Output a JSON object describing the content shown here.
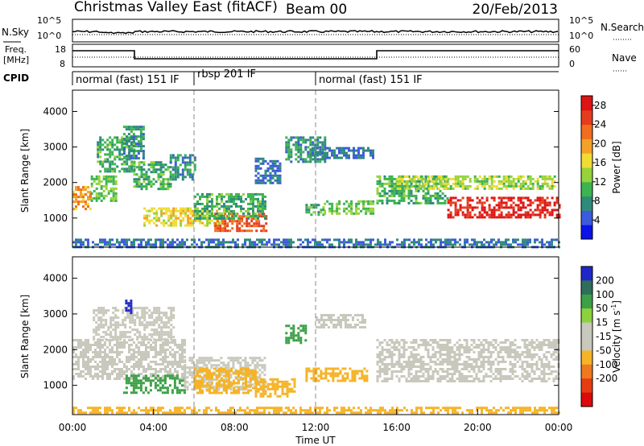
{
  "header": {
    "title": "Christmas Valley East (fitACF)",
    "beam": "Beam 00",
    "date": "20/Feb/2013"
  },
  "panels": {
    "nsky_label": "N.Sky",
    "nsky_ticks": [
      "10^5",
      "10^0"
    ],
    "nsearch_label": "N.Search",
    "nsearch_ticks": [
      "10^5",
      "10^0"
    ],
    "freq_label": "Freq.",
    "freq_unit": "[MHz]",
    "freq_ticks": [
      "18",
      "8"
    ],
    "nave_label": "Nave",
    "nave_ticks": [
      "60",
      "0"
    ],
    "cpid_label": "CPID",
    "cpid_segments": [
      {
        "label": "normal (fast) 151 IF",
        "start": 0,
        "end": 6
      },
      {
        "label": "rbsp 201 IF",
        "start": 6,
        "end": 12
      },
      {
        "label": "normal (fast) 151 IF",
        "start": 12,
        "end": 24
      }
    ]
  },
  "chart_data": [
    {
      "type": "heatmap",
      "ylabel": "Slant Range [km]",
      "xlabel": "",
      "yticks": [
        "1000",
        "2000",
        "3000",
        "4000"
      ],
      "ylim": [
        180,
        4600
      ],
      "xlim": [
        0,
        24
      ],
      "colorbar": {
        "label": "Power [dB]",
        "ticks": [
          "4",
          "8",
          "12",
          "16",
          "20",
          "24",
          "28"
        ],
        "range": [
          0,
          30
        ],
        "colors": [
          "#0a14e6",
          "#3c5adc",
          "#2e8b7a",
          "#3cb450",
          "#96d23c",
          "#f0dc32",
          "#f5a028",
          "#f06e1e",
          "#e63c1e",
          "#dc1414"
        ]
      },
      "features": [
        {
          "t": [
            0.0,
            0.9
          ],
          "r": [
            1250,
            1900
          ],
          "v": 20
        },
        {
          "t": [
            0.9,
            2.2
          ],
          "r": [
            1500,
            2200
          ],
          "v": 12
        },
        {
          "t": [
            1.2,
            3.0
          ],
          "r": [
            2300,
            3300
          ],
          "v": 10
        },
        {
          "t": [
            2.5,
            3.5
          ],
          "r": [
            2700,
            3600
          ],
          "v": 8
        },
        {
          "t": [
            3.0,
            4.8
          ],
          "r": [
            1800,
            2600
          ],
          "v": 10
        },
        {
          "t": [
            4.8,
            6.0
          ],
          "r": [
            2100,
            2800
          ],
          "v": 8
        },
        {
          "t": [
            3.5,
            7.5
          ],
          "r": [
            800,
            1300
          ],
          "v": 16
        },
        {
          "t": [
            7.0,
            9.6
          ],
          "r": [
            650,
            1150
          ],
          "v": 24
        },
        {
          "t": [
            6.0,
            9.5
          ],
          "r": [
            1000,
            1700
          ],
          "v": 10
        },
        {
          "t": [
            9.0,
            10.3
          ],
          "r": [
            2000,
            2700
          ],
          "v": 6
        },
        {
          "t": [
            10.5,
            12.5
          ],
          "r": [
            2600,
            3300
          ],
          "v": 8
        },
        {
          "t": [
            11.8,
            14.8
          ],
          "r": [
            2700,
            3000
          ],
          "v": 6
        },
        {
          "t": [
            11.5,
            12.4
          ],
          "r": [
            1100,
            1400
          ],
          "v": 10
        },
        {
          "t": [
            12.4,
            14.8
          ],
          "r": [
            1100,
            1500
          ],
          "v": 12
        },
        {
          "t": [
            15.0,
            18.5
          ],
          "r": [
            1400,
            2200
          ],
          "v": 10
        },
        {
          "t": [
            16.0,
            23.8
          ],
          "r": [
            1800,
            2200
          ],
          "v": 14
        },
        {
          "t": [
            18.5,
            24.0
          ],
          "r": [
            1000,
            1600
          ],
          "v": 28
        },
        {
          "t": [
            0.0,
            24.0
          ],
          "r": [
            200,
            420
          ],
          "v": 6
        }
      ]
    },
    {
      "type": "heatmap",
      "ylabel": "Slant Range [km]",
      "xlabel": "Time UT",
      "xticks": [
        "00:00",
        "04:00",
        "08:00",
        "12:00",
        "16:00",
        "20:00",
        "00:00"
      ],
      "yticks": [
        "1000",
        "2000",
        "3000",
        "4000"
      ],
      "ylim": [
        180,
        4600
      ],
      "xlim": [
        0,
        24
      ],
      "colorbar": {
        "label": "Velocity [m s",
        "label_sup": "-1",
        "label_end": "]",
        "ticks": [
          "200",
          "100",
          "50",
          "15",
          "-15",
          "-50",
          "-100",
          "-200"
        ],
        "colors": [
          "#1e28c8",
          "#2e6e5a",
          "#3ca046",
          "#8cd23c",
          "#c8c8bc",
          "#c8c8bc",
          "#f5b428",
          "#f07820",
          "#e63c14",
          "#dc0a0a"
        ]
      },
      "features": [
        {
          "t": [
            0.0,
            5.5
          ],
          "r": [
            1200,
            2300
          ],
          "v": 0
        },
        {
          "t": [
            1.0,
            5.0
          ],
          "r": [
            2300,
            3200
          ],
          "v": 0
        },
        {
          "t": [
            2.5,
            5.5
          ],
          "r": [
            800,
            1300
          ],
          "v": 40
        },
        {
          "t": [
            5.5,
            9.5
          ],
          "r": [
            900,
            1800
          ],
          "v": 0
        },
        {
          "t": [
            6.0,
            9.0
          ],
          "r": [
            800,
            1500
          ],
          "v": -60
        },
        {
          "t": [
            9.0,
            11.0
          ],
          "r": [
            700,
            1200
          ],
          "v": -60
        },
        {
          "t": [
            10.5,
            11.5
          ],
          "r": [
            2200,
            2700
          ],
          "v": 40
        },
        {
          "t": [
            12.0,
            14.5
          ],
          "r": [
            2600,
            3000
          ],
          "v": 0
        },
        {
          "t": [
            11.5,
            14.5
          ],
          "r": [
            1100,
            1500
          ],
          "v": -60
        },
        {
          "t": [
            15.0,
            24.0
          ],
          "r": [
            1100,
            2300
          ],
          "v": 0
        },
        {
          "t": [
            2.6,
            2.9
          ],
          "r": [
            3000,
            3400
          ],
          "v": 200
        },
        {
          "t": [
            0.0,
            24.0
          ],
          "r": [
            200,
            400
          ],
          "v": -60
        }
      ]
    }
  ]
}
